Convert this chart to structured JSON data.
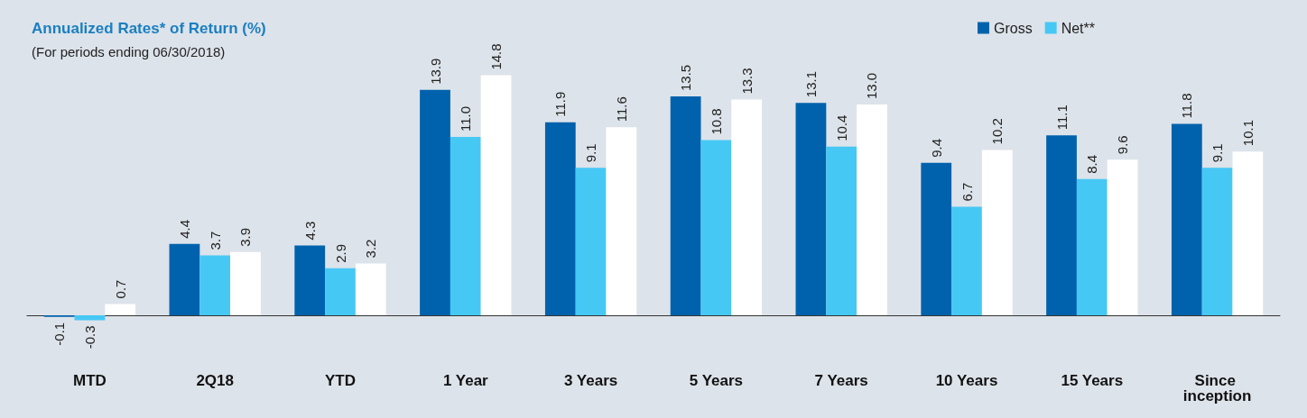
{
  "chart_data": {
    "type": "bar",
    "title": "Annualized Rates* of Return (%)",
    "subtitle": "(For periods ending 06/30/2018)",
    "categories": [
      "MTD",
      "2Q18",
      "YTD",
      "1 Year",
      "3 Years",
      "5 Years",
      "7 Years",
      "10 Years",
      "15 Years",
      "Since inception"
    ],
    "series": [
      {
        "name": "Gross",
        "color": "#0062ad",
        "values": [
          -0.1,
          4.4,
          4.3,
          13.9,
          11.9,
          13.5,
          13.1,
          9.4,
          11.1,
          11.8
        ],
        "value_labels": [
          "-0.1",
          "4.4",
          "4.3",
          "13.9",
          "11.9",
          "13.5",
          "13.1",
          "9.4",
          "11.1",
          "11.8"
        ]
      },
      {
        "name": "Net**",
        "color": "#46c8f5",
        "values": [
          -0.3,
          3.7,
          2.9,
          11.0,
          9.1,
          10.8,
          10.4,
          6.7,
          8.4,
          9.1
        ],
        "value_labels": [
          "-0.3",
          "3.7",
          "2.9",
          "11.0",
          "9.1",
          "10.8",
          "10.4",
          "6.7",
          "8.4",
          "9.1"
        ]
      },
      {
        "color": "#ffffff",
        "values": [
          0.7,
          3.9,
          3.2,
          14.8,
          11.6,
          13.3,
          13.0,
          10.2,
          9.6,
          10.1
        ],
        "value_labels": [
          "0.7",
          "3.9",
          "3.2",
          "14.8",
          "11.6",
          "13.3",
          "13.0",
          "10.2",
          "9.6",
          "10.1"
        ]
      }
    ],
    "legend": "top right"
  }
}
